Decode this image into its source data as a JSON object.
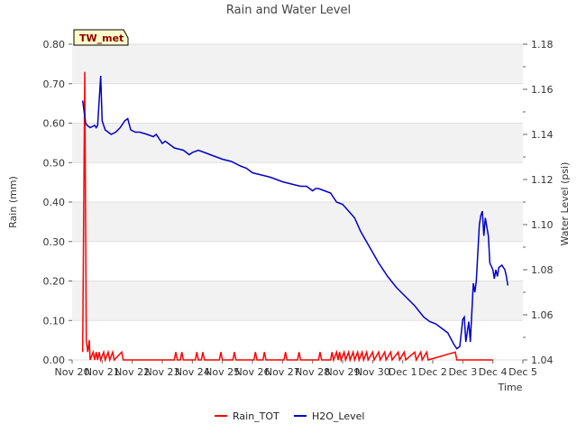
{
  "chart_data": {
    "type": "line",
    "title": "Rain and Water Level",
    "station_label": "TW_met",
    "xlabel": "Time",
    "ylabel_left": "Rain (mm)",
    "ylabel_right": "Water Level (psi)",
    "x_range": [
      0,
      15
    ],
    "ylim_left": [
      0,
      0.8
    ],
    "ylim_right": [
      1.04,
      1.18
    ],
    "x_ticks": [
      {
        "x": 0,
        "label": "Nov 20"
      },
      {
        "x": 1,
        "label": "Nov 21"
      },
      {
        "x": 2,
        "label": "Nov 22"
      },
      {
        "x": 3,
        "label": "Nov 23"
      },
      {
        "x": 4,
        "label": "Nov 24"
      },
      {
        "x": 5,
        "label": "Nov 25"
      },
      {
        "x": 6,
        "label": "Nov 26"
      },
      {
        "x": 7,
        "label": "Nov 27"
      },
      {
        "x": 8,
        "label": "Nov 28"
      },
      {
        "x": 9,
        "label": "Nov 29"
      },
      {
        "x": 10,
        "label": "Nov 30"
      },
      {
        "x": 11,
        "label": "Dec 1"
      },
      {
        "x": 12,
        "label": "Dec 2"
      },
      {
        "x": 13,
        "label": "Dec 3"
      },
      {
        "x": 14,
        "label": "Dec 4"
      },
      {
        "x": 15,
        "label": "Dec 5"
      }
    ],
    "y_ticks_left": [
      "0.00",
      "0.10",
      "0.20",
      "0.30",
      "0.40",
      "0.50",
      "0.60",
      "0.70",
      "0.80"
    ],
    "y_ticks_right": [
      "1.04",
      "1.06",
      "1.08",
      "1.10",
      "1.12",
      "1.14",
      "1.16",
      "1.18"
    ],
    "series": [
      {
        "name": "Rain_TOT",
        "color": "#ff0000",
        "axis": "left",
        "points": [
          [
            0.35,
            0.02
          ],
          [
            0.42,
            0.73
          ],
          [
            0.47,
            0.05
          ],
          [
            0.52,
            0.02
          ],
          [
            0.57,
            0.05
          ],
          [
            0.6,
            0.0
          ],
          [
            0.7,
            0.02
          ],
          [
            0.75,
            0.0
          ],
          [
            0.8,
            0.02
          ],
          [
            0.85,
            0.0
          ],
          [
            0.9,
            0.02
          ],
          [
            0.95,
            0.0
          ],
          [
            1.05,
            0.02
          ],
          [
            1.1,
            0.0
          ],
          [
            1.2,
            0.02
          ],
          [
            1.25,
            0.0
          ],
          [
            1.35,
            0.02
          ],
          [
            1.4,
            0.0
          ],
          [
            1.65,
            0.02
          ],
          [
            1.7,
            0.0
          ],
          [
            3.4,
            0.0
          ],
          [
            3.45,
            0.02
          ],
          [
            3.5,
            0.0
          ],
          [
            3.6,
            0.0
          ],
          [
            3.65,
            0.02
          ],
          [
            3.7,
            0.0
          ],
          [
            4.1,
            0.0
          ],
          [
            4.15,
            0.02
          ],
          [
            4.2,
            0.0
          ],
          [
            4.3,
            0.0
          ],
          [
            4.35,
            0.02
          ],
          [
            4.4,
            0.0
          ],
          [
            4.9,
            0.0
          ],
          [
            4.95,
            0.02
          ],
          [
            5.0,
            0.0
          ],
          [
            5.35,
            0.0
          ],
          [
            5.4,
            0.02
          ],
          [
            5.45,
            0.0
          ],
          [
            6.05,
            0.0
          ],
          [
            6.1,
            0.02
          ],
          [
            6.15,
            0.0
          ],
          [
            6.35,
            0.0
          ],
          [
            6.4,
            0.02
          ],
          [
            6.45,
            0.0
          ],
          [
            7.05,
            0.0
          ],
          [
            7.1,
            0.02
          ],
          [
            7.15,
            0.0
          ],
          [
            7.5,
            0.0
          ],
          [
            7.55,
            0.02
          ],
          [
            7.6,
            0.0
          ],
          [
            8.2,
            0.0
          ],
          [
            8.25,
            0.02
          ],
          [
            8.3,
            0.0
          ],
          [
            8.6,
            0.0
          ],
          [
            8.65,
            0.02
          ],
          [
            8.7,
            0.0
          ],
          [
            8.8,
            0.02
          ],
          [
            8.85,
            0.0
          ],
          [
            8.9,
            0.02
          ],
          [
            8.95,
            0.0
          ],
          [
            9.05,
            0.02
          ],
          [
            9.1,
            0.0
          ],
          [
            9.2,
            0.02
          ],
          [
            9.25,
            0.0
          ],
          [
            9.35,
            0.02
          ],
          [
            9.4,
            0.0
          ],
          [
            9.5,
            0.02
          ],
          [
            9.55,
            0.0
          ],
          [
            9.65,
            0.02
          ],
          [
            9.7,
            0.0
          ],
          [
            9.8,
            0.02
          ],
          [
            9.85,
            0.0
          ],
          [
            10.0,
            0.02
          ],
          [
            10.05,
            0.0
          ],
          [
            10.2,
            0.02
          ],
          [
            10.25,
            0.0
          ],
          [
            10.4,
            0.02
          ],
          [
            10.45,
            0.0
          ],
          [
            10.6,
            0.02
          ],
          [
            10.65,
            0.0
          ],
          [
            10.85,
            0.02
          ],
          [
            10.9,
            0.0
          ],
          [
            11.05,
            0.02
          ],
          [
            11.1,
            0.0
          ],
          [
            11.4,
            0.02
          ],
          [
            11.45,
            0.0
          ],
          [
            11.6,
            0.02
          ],
          [
            11.65,
            0.0
          ],
          [
            11.8,
            0.02
          ],
          [
            11.85,
            0.0
          ],
          [
            12.75,
            0.02
          ],
          [
            12.8,
            0.0
          ],
          [
            14.0,
            0.0
          ]
        ]
      },
      {
        "name": "H2O_Level",
        "color": "#0000cc",
        "axis": "right",
        "points": [
          [
            0.35,
            1.155
          ],
          [
            0.45,
            1.145
          ],
          [
            0.5,
            1.144
          ],
          [
            0.6,
            1.143
          ],
          [
            0.75,
            1.144
          ],
          [
            0.8,
            1.143
          ],
          [
            0.85,
            1.144
          ],
          [
            0.9,
            1.155
          ],
          [
            0.95,
            1.166
          ],
          [
            1.0,
            1.146
          ],
          [
            1.1,
            1.142
          ],
          [
            1.2,
            1.141
          ],
          [
            1.3,
            1.14
          ],
          [
            1.45,
            1.141
          ],
          [
            1.6,
            1.143
          ],
          [
            1.75,
            1.146
          ],
          [
            1.85,
            1.147
          ],
          [
            1.95,
            1.142
          ],
          [
            2.1,
            1.141
          ],
          [
            2.25,
            1.141
          ],
          [
            2.5,
            1.14
          ],
          [
            2.7,
            1.139
          ],
          [
            2.8,
            1.14
          ],
          [
            2.9,
            1.138
          ],
          [
            3.0,
            1.136
          ],
          [
            3.1,
            1.137
          ],
          [
            3.2,
            1.136
          ],
          [
            3.4,
            1.134
          ],
          [
            3.7,
            1.133
          ],
          [
            3.9,
            1.131
          ],
          [
            4.0,
            1.132
          ],
          [
            4.2,
            1.133
          ],
          [
            4.4,
            1.132
          ],
          [
            4.6,
            1.131
          ],
          [
            4.8,
            1.13
          ],
          [
            5.0,
            1.129
          ],
          [
            5.3,
            1.128
          ],
          [
            5.6,
            1.126
          ],
          [
            5.8,
            1.125
          ],
          [
            6.0,
            1.123
          ],
          [
            6.3,
            1.122
          ],
          [
            6.6,
            1.121
          ],
          [
            6.8,
            1.12
          ],
          [
            7.0,
            1.119
          ],
          [
            7.3,
            1.118
          ],
          [
            7.6,
            1.117
          ],
          [
            7.8,
            1.117
          ],
          [
            8.0,
            1.115
          ],
          [
            8.1,
            1.116
          ],
          [
            8.2,
            1.116
          ],
          [
            8.4,
            1.115
          ],
          [
            8.6,
            1.114
          ],
          [
            8.8,
            1.11
          ],
          [
            9.0,
            1.109
          ],
          [
            9.2,
            1.106
          ],
          [
            9.4,
            1.103
          ],
          [
            9.6,
            1.097
          ],
          [
            9.9,
            1.09
          ],
          [
            10.2,
            1.083
          ],
          [
            10.5,
            1.077
          ],
          [
            10.8,
            1.072
          ],
          [
            11.1,
            1.068
          ],
          [
            11.4,
            1.064
          ],
          [
            11.7,
            1.059
          ],
          [
            11.9,
            1.057
          ],
          [
            12.1,
            1.056
          ],
          [
            12.3,
            1.054
          ],
          [
            12.5,
            1.052
          ],
          [
            12.7,
            1.047
          ],
          [
            12.8,
            1.045
          ],
          [
            12.9,
            1.046
          ],
          [
            13.0,
            1.058
          ],
          [
            13.05,
            1.059
          ],
          [
            13.1,
            1.048
          ],
          [
            13.2,
            1.057
          ],
          [
            13.25,
            1.048
          ],
          [
            13.35,
            1.074
          ],
          [
            13.4,
            1.07
          ],
          [
            13.45,
            1.075
          ],
          [
            13.55,
            1.1
          ],
          [
            13.6,
            1.104
          ],
          [
            13.65,
            1.106
          ],
          [
            13.7,
            1.095
          ],
          [
            13.75,
            1.103
          ],
          [
            13.85,
            1.095
          ],
          [
            13.9,
            1.083
          ],
          [
            14.0,
            1.08
          ],
          [
            14.05,
            1.076
          ],
          [
            14.1,
            1.08
          ],
          [
            14.15,
            1.077
          ],
          [
            14.2,
            1.081
          ],
          [
            14.3,
            1.082
          ],
          [
            14.4,
            1.08
          ],
          [
            14.45,
            1.077
          ],
          [
            14.5,
            1.073
          ]
        ]
      }
    ]
  }
}
